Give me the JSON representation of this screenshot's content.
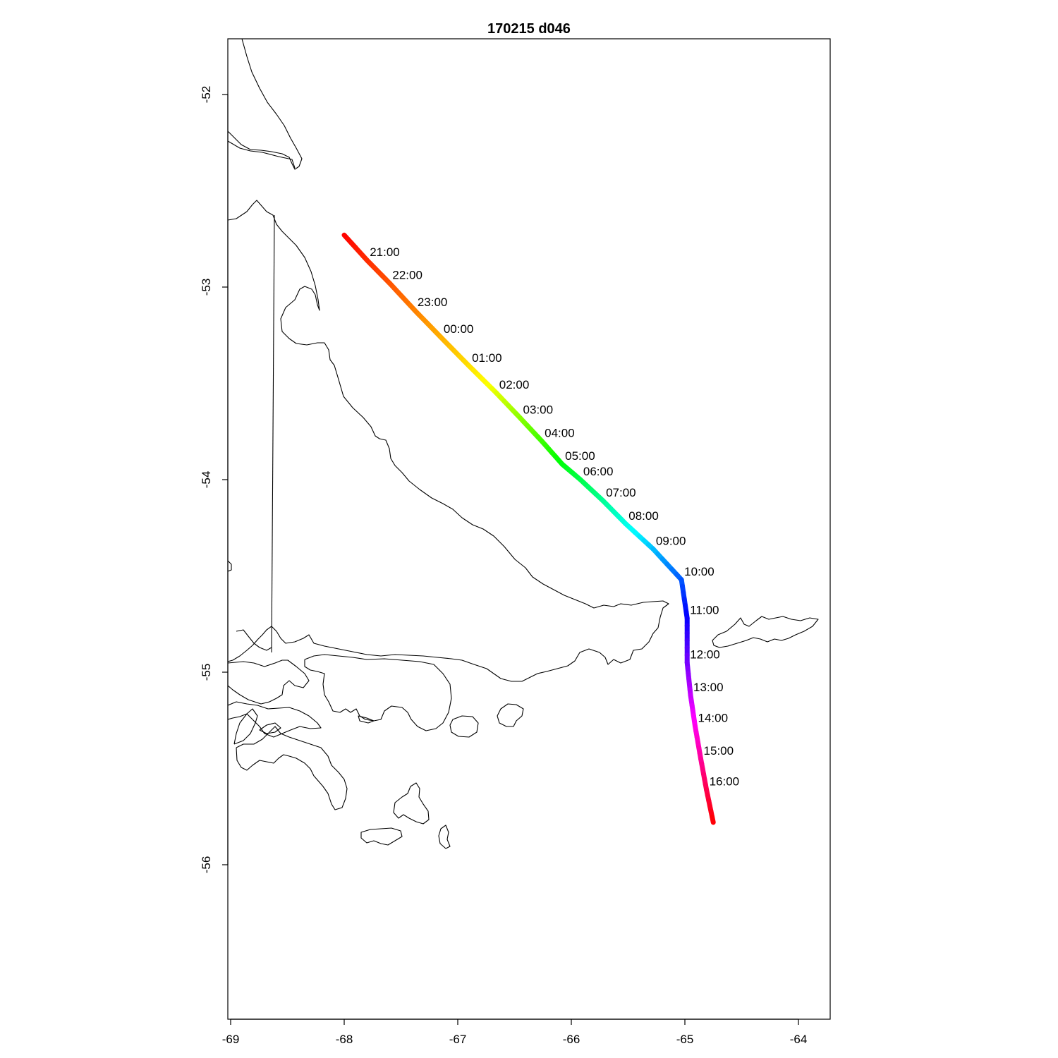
{
  "title": "170215   d046",
  "map": {
    "lon_range": [
      -69,
      -64
    ],
    "lat_range": [
      -56.8,
      -51.7
    ],
    "x_ticks": [
      -69,
      -68,
      -67,
      -66,
      -65,
      -64
    ],
    "x_tick_labels": [
      "-69",
      "-68",
      "-67",
      "-66",
      "-65",
      "-64"
    ],
    "y_ticks": [
      -52,
      -53,
      -54,
      -55,
      -56
    ],
    "y_tick_labels": [
      "-52",
      "-53",
      "-54",
      "-55",
      "-56"
    ],
    "track_colors": [
      "#ff0000",
      "#ff8000",
      "#ffff00",
      "#00ff00",
      "#00ffff",
      "#0000ff",
      "#ff00ff",
      "#ff0000"
    ]
  },
  "track": [
    {
      "time": "",
      "lon": -68.0,
      "lat": -52.73
    },
    {
      "time": "21:00",
      "lon": -67.8,
      "lat": -52.86
    },
    {
      "time": "22:00",
      "lon": -67.6,
      "lat": -52.98
    },
    {
      "time": "23:00",
      "lon": -67.38,
      "lat": -53.12
    },
    {
      "time": "00:00",
      "lon": -67.15,
      "lat": -53.26
    },
    {
      "time": "01:00",
      "lon": -66.9,
      "lat": -53.41
    },
    {
      "time": "02:00",
      "lon": -66.66,
      "lat": -53.55
    },
    {
      "time": "03:00",
      "lon": -66.45,
      "lat": -53.68
    },
    {
      "time": "04:00",
      "lon": -66.26,
      "lat": -53.8
    },
    {
      "time": "05:00",
      "lon": -66.08,
      "lat": -53.92
    },
    {
      "time": "06:00",
      "lon": -65.92,
      "lat": -54.0
    },
    {
      "time": "07:00",
      "lon": -65.72,
      "lat": -54.11
    },
    {
      "time": "08:00",
      "lon": -65.52,
      "lat": -54.23
    },
    {
      "time": "09:00",
      "lon": -65.28,
      "lat": -54.36
    },
    {
      "time": "10:00",
      "lon": -65.03,
      "lat": -54.52
    },
    {
      "time": "11:00",
      "lon": -64.98,
      "lat": -54.72
    },
    {
      "time": "12:00",
      "lon": -64.98,
      "lat": -54.95
    },
    {
      "time": "13:00",
      "lon": -64.95,
      "lat": -55.12
    },
    {
      "time": "14:00",
      "lon": -64.91,
      "lat": -55.28
    },
    {
      "time": "15:00",
      "lon": -64.86,
      "lat": -55.45
    },
    {
      "time": "16:00",
      "lon": -64.81,
      "lat": -55.61
    },
    {
      "time": "",
      "lon": -64.75,
      "lat": -55.78
    }
  ]
}
